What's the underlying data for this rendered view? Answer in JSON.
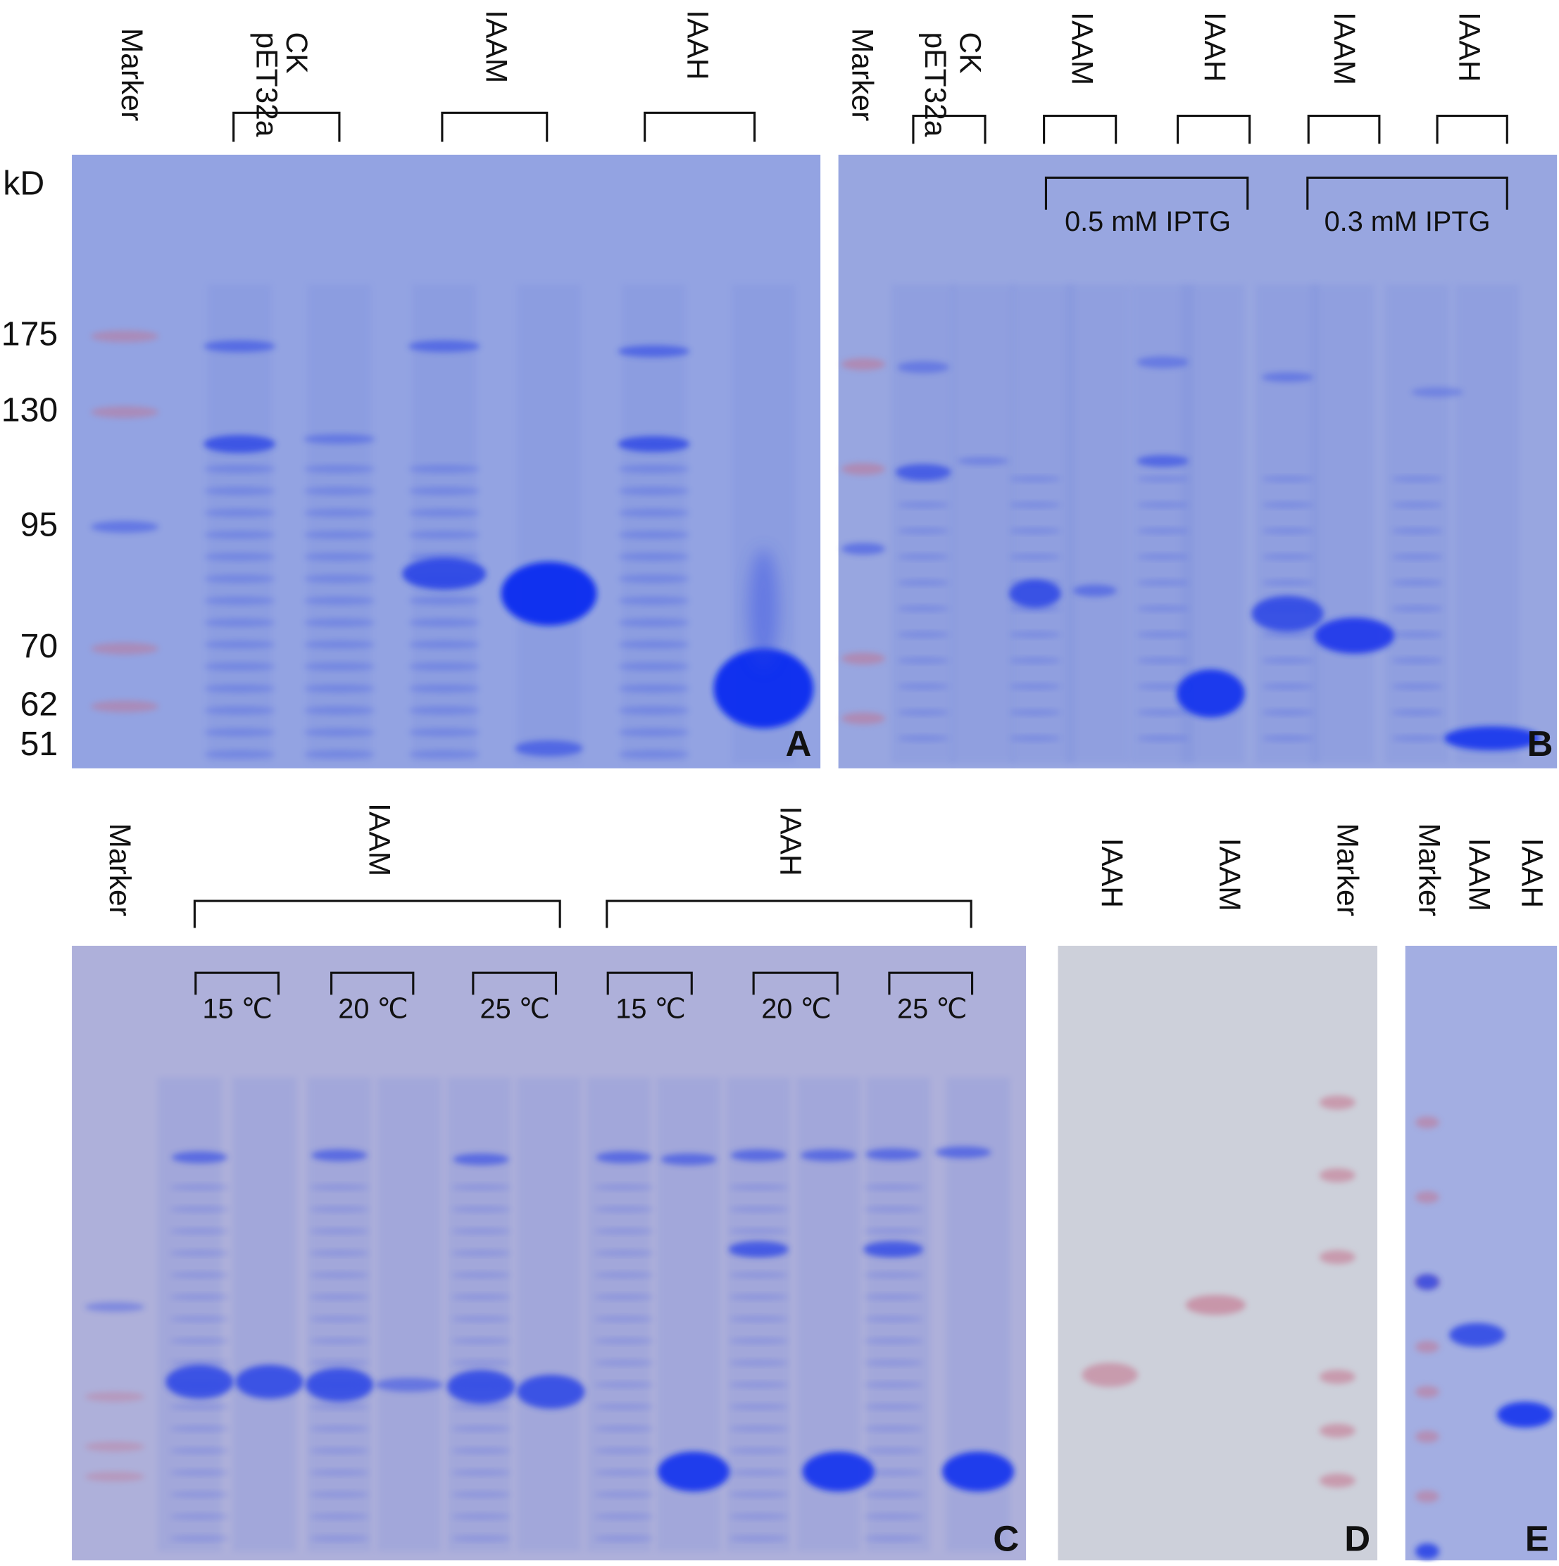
{
  "panels": [
    {
      "letter": "A",
      "unit": "kD",
      "marker_sizes": [
        175,
        130,
        95,
        70,
        62,
        51
      ],
      "lanes": [
        "Marker",
        "CK",
        "pET32a",
        "IAAM",
        "IAAH"
      ]
    },
    {
      "letter": "B",
      "lanes": [
        "Marker",
        "CK",
        "pET32a",
        "IAAM",
        "IAAH",
        "IAAM",
        "IAAH"
      ],
      "conditions": [
        "0.5 mM IPTG",
        "0.3 mM IPTG"
      ]
    },
    {
      "letter": "C",
      "lanes": [
        "Marker",
        "IAAM",
        "IAAH"
      ],
      "conditions": [
        "15 ℃",
        "20 ℃",
        "25 ℃",
        "15 ℃",
        "20 ℃",
        "25 ℃"
      ]
    },
    {
      "letter": "D",
      "lanes": [
        "IAAH",
        "IAAM",
        "Marker"
      ]
    },
    {
      "letter": "E",
      "lanes": [
        "Marker",
        "IAAM",
        "IAAH"
      ]
    }
  ]
}
